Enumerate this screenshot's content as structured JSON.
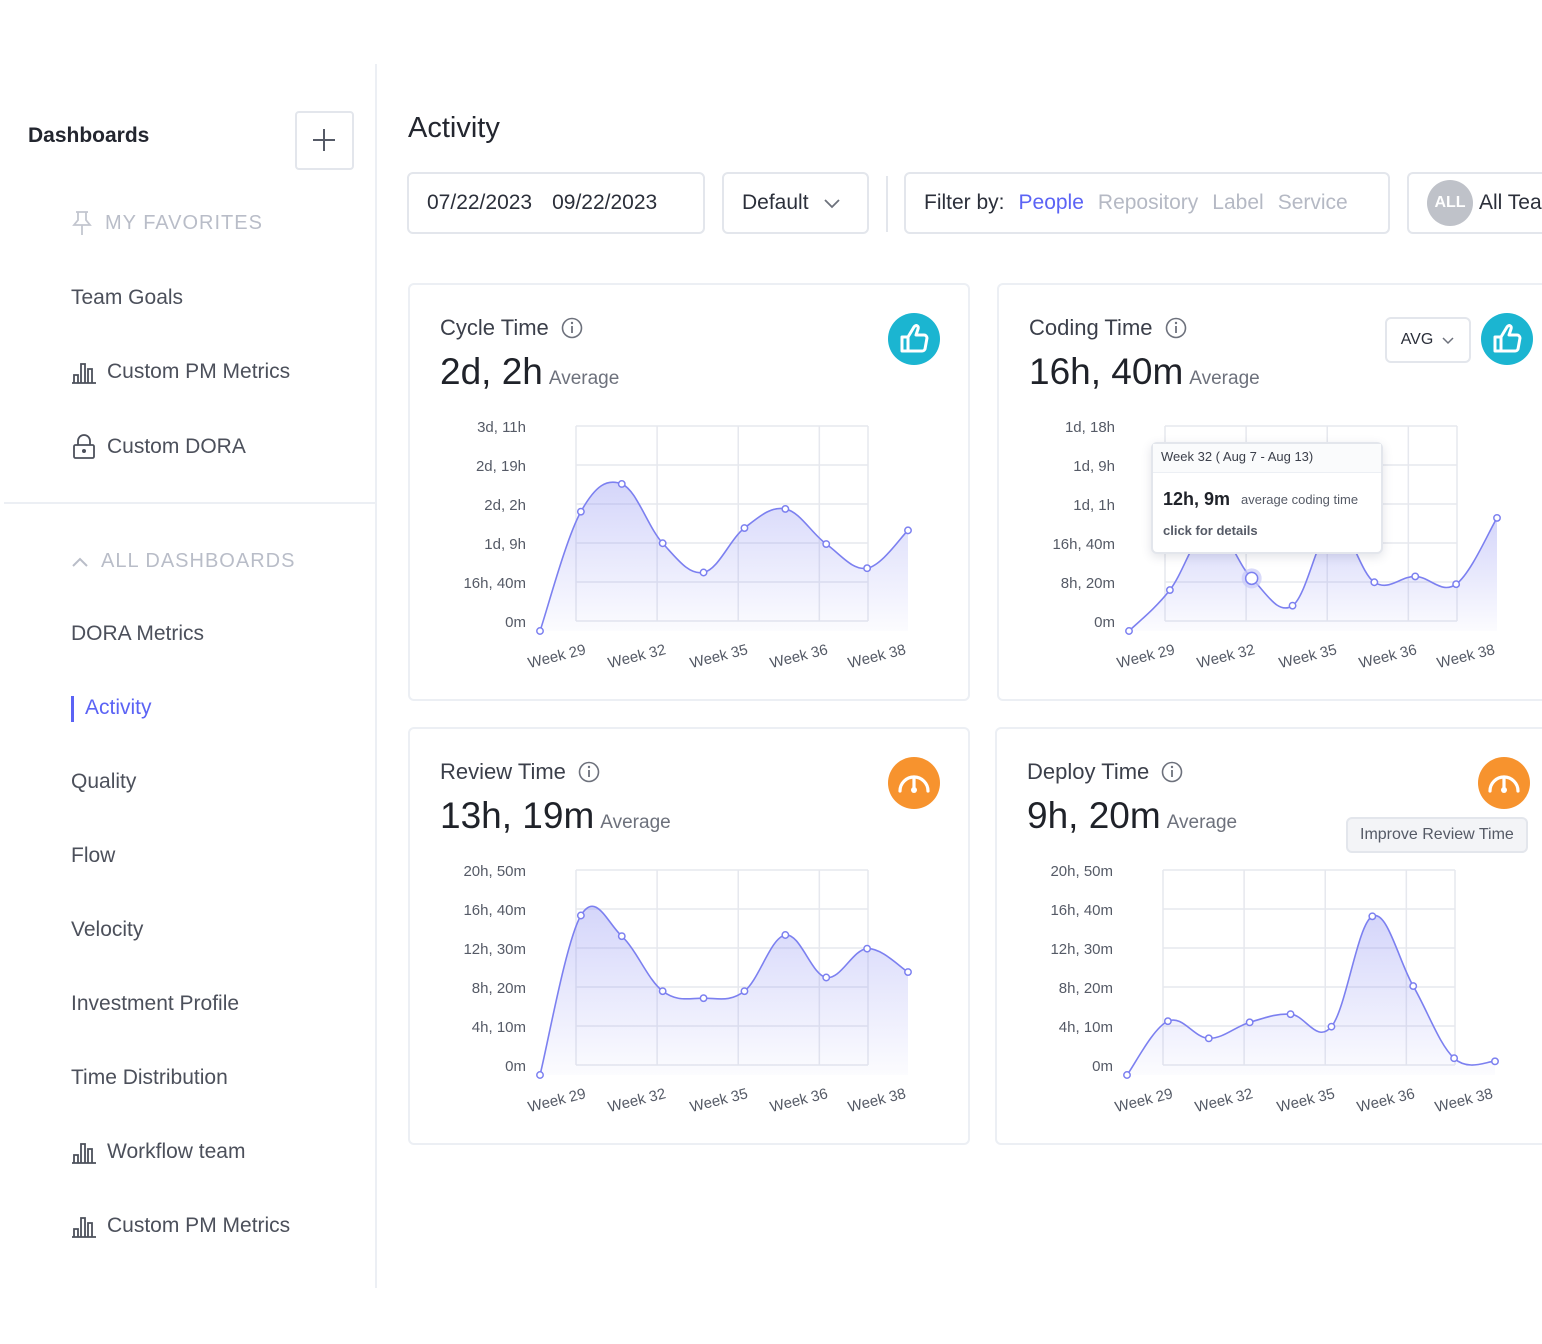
{
  "sidebar": {
    "title": "Dashboards",
    "favorites_label": "MY  FAVORITES",
    "favorites": [
      {
        "label": "Team Goals",
        "icon": ""
      },
      {
        "label": "Custom PM Metrics",
        "icon": "bar-chart-icon"
      },
      {
        "label": "Custom DORA",
        "icon": "lock-icon"
      }
    ],
    "all_label": "ALL DASHBOARDS",
    "dashboards": [
      {
        "label": "DORA Metrics",
        "icon": ""
      },
      {
        "label": "Activity",
        "icon": "",
        "active": true
      },
      {
        "label": "Quality",
        "icon": ""
      },
      {
        "label": "Flow",
        "icon": ""
      },
      {
        "label": "Velocity",
        "icon": ""
      },
      {
        "label": "Investment Profile",
        "icon": ""
      },
      {
        "label": "Time Distribution",
        "icon": ""
      },
      {
        "label": "Workflow team",
        "icon": "bar-chart-icon"
      },
      {
        "label": "Custom PM Metrics",
        "icon": "bar-chart-icon"
      }
    ]
  },
  "header": {
    "title": "Activity",
    "date_start": "07/22/2023",
    "date_end": "09/22/2023",
    "preset": "Default",
    "filter_label": "Filter by:",
    "filter_options": [
      "People",
      "Repository",
      "Label",
      "Service"
    ],
    "filter_selected": "People",
    "team_badge": "ALL",
    "team_label": "All Tea"
  },
  "cards": [
    {
      "title": "Cycle Time",
      "value": "2d, 2h",
      "value_suffix": "Average",
      "status": "good",
      "chart_data": {
        "type": "area",
        "y_ticks": [
          "0m",
          "16h, 40m",
          "1d, 9h",
          "2d, 2h",
          "2d, 19h",
          "3d, 11h"
        ],
        "x_ticks": [
          "Week 29",
          "Week 32",
          "Week 35",
          "Week 36",
          "Week 38"
        ],
        "points": [
          0.0,
          3.06,
          3.77,
          2.25,
          1.5,
          2.64,
          3.13,
          2.23,
          1.61,
          2.58
        ]
      }
    },
    {
      "title": "Coding Time",
      "value": "16h, 40m",
      "value_suffix": "Average",
      "status": "good",
      "select": "AVG",
      "tooltip": {
        "header": "Week 32 ( Aug 7 - Aug 13)",
        "value": "12h, 9m",
        "desc": "average coding time",
        "link": "click for details"
      },
      "chart_data": {
        "type": "area",
        "y_ticks": [
          "0m",
          "8h, 20m",
          "16h, 40m",
          "1d, 1h",
          "1d, 9h",
          "1d, 18h"
        ],
        "x_ticks": [
          "Week 29",
          "Week 32",
          "Week 35",
          "Week 36",
          "Week 38"
        ],
        "points": [
          0.0,
          1.05,
          2.7,
          1.35,
          0.65,
          2.75,
          1.25,
          1.4,
          1.2,
          2.9
        ],
        "highlight_index": 3
      }
    },
    {
      "title": "Review Time",
      "value": "13h, 19m",
      "value_suffix": "Average",
      "status": "warn",
      "chart_data": {
        "type": "area",
        "y_ticks": [
          "0m",
          "4h, 10m",
          "8h, 20m",
          "12h, 30m",
          "16h, 40m",
          "20h, 50m"
        ],
        "x_ticks": [
          "Week 29",
          "Week 32",
          "Week 35",
          "Week 36",
          "Week 38"
        ],
        "points": [
          0.0,
          4.09,
          3.56,
          2.15,
          1.97,
          2.15,
          3.59,
          2.5,
          3.24,
          2.64
        ]
      }
    },
    {
      "title": "Deploy Time",
      "value": "9h, 20m",
      "value_suffix": "Average",
      "status": "warn",
      "button": "Improve Review Time",
      "chart_data": {
        "type": "area",
        "y_ticks": [
          "0m",
          "4h, 10m",
          "8h, 20m",
          "12h, 30m",
          "16h, 40m",
          "20h, 50m"
        ],
        "x_ticks": [
          "Week 29",
          "Week 32",
          "Week 35",
          "Week 36",
          "Week 38"
        ],
        "points": [
          0.0,
          1.38,
          0.94,
          1.35,
          1.56,
          1.24,
          4.07,
          2.28,
          0.43,
          0.35
        ]
      }
    }
  ],
  "colors": {
    "accent": "#5b63f5",
    "line": "#7c80f0",
    "good": "#1bb5d1",
    "warn": "#f7932e"
  }
}
